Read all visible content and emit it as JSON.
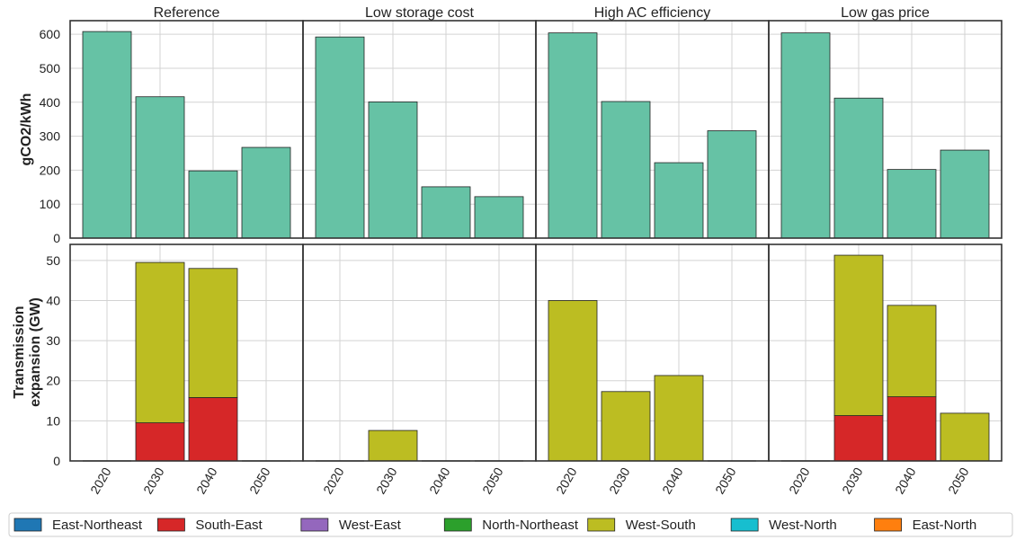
{
  "chart_data": [
    {
      "type": "bar",
      "panels": [
        "Reference",
        "Low storage cost",
        "High AC efficiency",
        "Low gas price"
      ],
      "categories": [
        "2020",
        "2030",
        "2040",
        "2050"
      ],
      "ylabel": "gCO2/kWh",
      "ylim": [
        0,
        640
      ],
      "yticks": [
        0,
        100,
        200,
        300,
        400,
        500,
        600
      ],
      "grid": true,
      "bar_color": "#66c2a5",
      "values": [
        [
          608,
          416,
          198,
          267
        ],
        [
          592,
          401,
          151,
          122
        ],
        [
          604,
          402,
          222,
          316
        ],
        [
          604,
          412,
          202,
          259
        ]
      ]
    },
    {
      "type": "bar",
      "stacked": true,
      "panels": [
        "Reference",
        "Low storage cost",
        "High AC efficiency",
        "Low gas price"
      ],
      "categories": [
        "2020",
        "2030",
        "2040",
        "2050"
      ],
      "ylabel": [
        "Transmission",
        "expansion (GW)"
      ],
      "ylim": [
        0,
        54
      ],
      "yticks": [
        0,
        10,
        20,
        30,
        40,
        50
      ],
      "grid": true,
      "legend_position": "bottom",
      "series": [
        {
          "name": "East-Northeast",
          "color": "#1f77b4",
          "values": [
            [
              0,
              0,
              0,
              0
            ],
            [
              0,
              0,
              0,
              0
            ],
            [
              0,
              0,
              0,
              0
            ],
            [
              0,
              0,
              0,
              0
            ]
          ]
        },
        {
          "name": "South-East",
          "color": "#d62728",
          "values": [
            [
              0,
              9.5,
              15.8,
              0
            ],
            [
              0,
              0,
              0,
              0
            ],
            [
              0,
              0,
              0,
              0
            ],
            [
              0,
              11.3,
              16,
              0
            ]
          ]
        },
        {
          "name": "West-East",
          "color": "#9467bd",
          "values": [
            [
              0,
              0,
              0,
              0
            ],
            [
              0,
              0,
              0,
              0
            ],
            [
              0,
              0,
              0,
              0
            ],
            [
              0,
              0,
              0,
              0
            ]
          ]
        },
        {
          "name": "North-Northeast",
          "color": "#2ca02c",
          "values": [
            [
              0,
              0,
              0,
              0
            ],
            [
              0,
              0,
              0,
              0
            ],
            [
              0,
              0,
              0,
              0
            ],
            [
              0,
              0,
              0,
              0
            ]
          ]
        },
        {
          "name": "West-South",
          "color": "#bcbd22",
          "values": [
            [
              0,
              40,
              32.2,
              0
            ],
            [
              0,
              7.6,
              0,
              0
            ],
            [
              40,
              17.3,
              21.3,
              0
            ],
            [
              0,
              40,
              22.8,
              11.9
            ]
          ]
        },
        {
          "name": "West-North",
          "color": "#17becf",
          "values": [
            [
              0,
              0,
              0,
              0
            ],
            [
              0,
              0,
              0,
              0
            ],
            [
              0,
              0,
              0,
              0
            ],
            [
              0,
              0,
              0,
              0
            ]
          ]
        },
        {
          "name": "East-North",
          "color": "#ff7f0e",
          "values": [
            [
              0,
              0,
              0,
              0
            ],
            [
              0,
              0,
              0,
              0
            ],
            [
              0,
              0,
              0,
              0
            ],
            [
              0,
              0,
              0,
              0
            ]
          ]
        }
      ]
    }
  ]
}
